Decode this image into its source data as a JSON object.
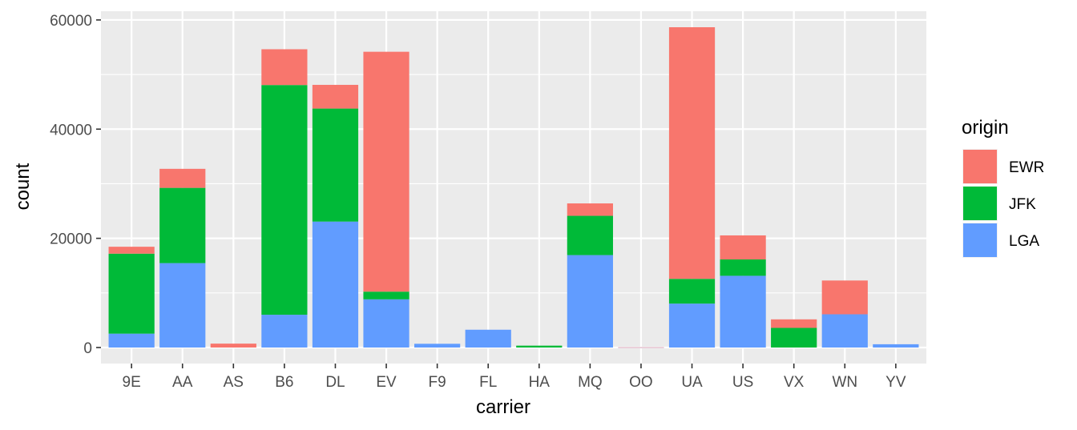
{
  "chart_data": {
    "type": "bar",
    "stacked": true,
    "xlabel": "carrier",
    "ylabel": "count",
    "categories": [
      "9E",
      "AA",
      "AS",
      "B6",
      "DL",
      "EV",
      "F9",
      "FL",
      "HA",
      "MQ",
      "OO",
      "UA",
      "US",
      "VX",
      "WN",
      "YV"
    ],
    "ylim": [
      -2934,
      61600
    ],
    "yticks": [
      0,
      20000,
      40000,
      60000
    ],
    "ytick_labels": [
      "0",
      "20000",
      "40000",
      "60000"
    ],
    "grid": true,
    "legend": {
      "title": "origin",
      "position": "right"
    },
    "series": [
      {
        "name": "LGA",
        "color": "#619CFF",
        "values": [
          2541,
          15459,
          0,
          6002,
          23067,
          8826,
          685,
          3260,
          0,
          16928,
          26,
          8044,
          13136,
          0,
          6087,
          601
        ]
      },
      {
        "name": "JFK",
        "color": "#00BA38",
        "values": [
          14651,
          13783,
          0,
          42076,
          20701,
          1408,
          0,
          0,
          342,
          7193,
          0,
          4534,
          2995,
          3596,
          0,
          0
        ]
      },
      {
        "name": "EWR",
        "color": "#F8766D",
        "values": [
          1268,
          3487,
          714,
          6557,
          4342,
          43939,
          0,
          0,
          0,
          2276,
          6,
          46087,
          4405,
          1566,
          6188,
          0
        ]
      }
    ],
    "legend_order": [
      "EWR",
      "JFK",
      "LGA"
    ]
  }
}
